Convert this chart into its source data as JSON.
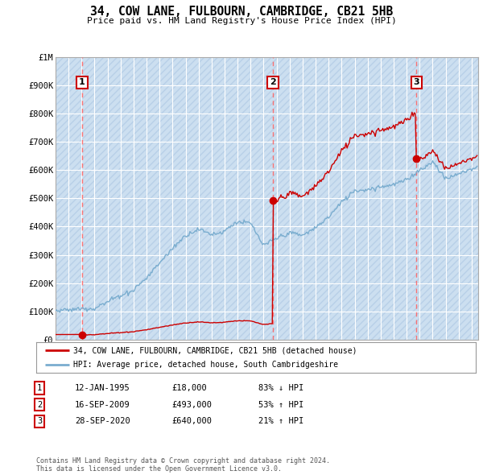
{
  "title": "34, COW LANE, FULBOURN, CAMBRIDGE, CB21 5HB",
  "subtitle": "Price paid vs. HM Land Registry's House Price Index (HPI)",
  "background_color": "#ffffff",
  "plot_bg_color": "#dce9f5",
  "grid_color": "#ffffff",
  "red_line_color": "#cc0000",
  "blue_line_color": "#7aadcf",
  "vline_color": "#cc0000",
  "sales": [
    {
      "date_num": 1995.04,
      "price": 18000,
      "label": "1",
      "date_str": "12-JAN-1995"
    },
    {
      "date_num": 2009.71,
      "price": 493000,
      "label": "2",
      "date_str": "16-SEP-2009"
    },
    {
      "date_num": 2020.74,
      "price": 640000,
      "label": "3",
      "date_str": "28-SEP-2020"
    }
  ],
  "ylim": [
    0,
    1000000
  ],
  "xlim": [
    1993.0,
    2025.5
  ],
  "yticks": [
    0,
    100000,
    200000,
    300000,
    400000,
    500000,
    600000,
    700000,
    800000,
    900000,
    1000000
  ],
  "ytick_labels": [
    "£0",
    "£100K",
    "£200K",
    "£300K",
    "£400K",
    "£500K",
    "£600K",
    "£700K",
    "£800K",
    "£900K",
    "£1M"
  ],
  "xticks": [
    1993,
    1994,
    1995,
    1996,
    1997,
    1998,
    1999,
    2000,
    2001,
    2002,
    2003,
    2004,
    2005,
    2006,
    2007,
    2008,
    2009,
    2010,
    2011,
    2012,
    2013,
    2014,
    2015,
    2016,
    2017,
    2018,
    2019,
    2020,
    2021,
    2022,
    2023,
    2024,
    2025
  ],
  "legend_entries": [
    "34, COW LANE, FULBOURN, CAMBRIDGE, CB21 5HB (detached house)",
    "HPI: Average price, detached house, South Cambridgeshire"
  ],
  "footer": "Contains HM Land Registry data © Crown copyright and database right 2024.\nThis data is licensed under the Open Government Licence v3.0.",
  "table_rows": [
    {
      "num": "1",
      "date": "12-JAN-1995",
      "price": "£18,000",
      "hpi": "83% ↓ HPI"
    },
    {
      "num": "2",
      "date": "16-SEP-2009",
      "price": "£493,000",
      "hpi": "53% ↑ HPI"
    },
    {
      "num": "3",
      "date": "28-SEP-2020",
      "price": "£640,000",
      "hpi": "21% ↑ HPI"
    }
  ]
}
